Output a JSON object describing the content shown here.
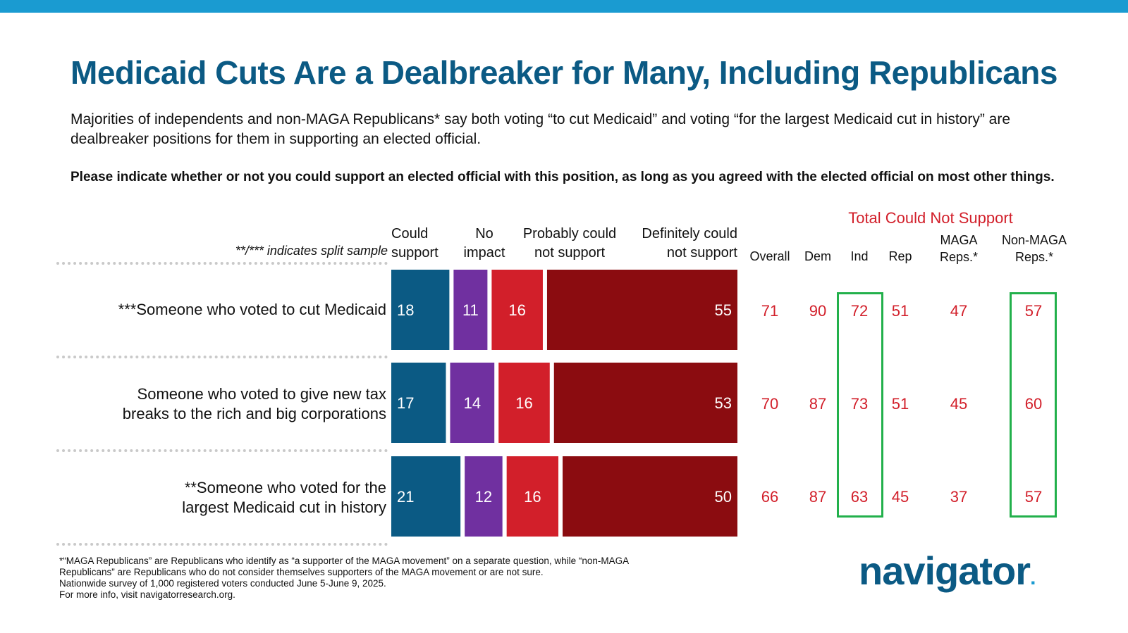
{
  "title": "Medicaid Cuts Are a Dealbreaker for Many, Including Republicans",
  "subtitle": "Majorities of independents and non-MAGA Republicans* say both voting “to cut Medicaid” and voting “for the largest Medicaid cut in history” are dealbreaker positions for them in supporting an elected official.",
  "question": "Please indicate whether or not you could support an elected official with this position, as long as you agreed with the elected official on most other things.",
  "split_note": "**/*** indicates split sample",
  "colors": {
    "brand": "#0b5a84",
    "topbar": "#1a9bd1",
    "could_support": "#0b5a84",
    "no_impact": "#7030a0",
    "probably_not": "#d21f2a",
    "definitely_not": "#8b0c10",
    "highlight": "#22b04b"
  },
  "chart_data": {
    "type": "bar",
    "orientation": "horizontal",
    "stacked": true,
    "categories": [
      "***Someone who voted to cut Medicaid",
      "Someone who voted to give new tax breaks to the rich and big corporations",
      "**Someone who voted for the largest Medicaid cut in history"
    ],
    "category_lines": [
      [
        "***Someone who voted to cut Medicaid"
      ],
      [
        "Someone who voted to give new tax",
        "breaks to the rich and big corporations"
      ],
      [
        "**Someone who voted for the",
        "largest Medicaid cut in history"
      ]
    ],
    "series": [
      {
        "name": "Could support",
        "name_lines": [
          "Could",
          "support"
        ],
        "color": "#0b5a84",
        "values": [
          18,
          17,
          21
        ]
      },
      {
        "name": "No impact",
        "name_lines": [
          "No",
          "impact"
        ],
        "color": "#7030a0",
        "values": [
          11,
          14,
          12
        ]
      },
      {
        "name": "Probably could not support",
        "name_lines": [
          "Probably could",
          "not support"
        ],
        "color": "#d21f2a",
        "values": [
          16,
          16,
          16
        ]
      },
      {
        "name": "Definitely could not support",
        "name_lines": [
          "Definitely could",
          "not support"
        ],
        "color": "#8b0c10",
        "values": [
          55,
          53,
          50
        ]
      }
    ],
    "side_table": {
      "group_title": "Total Could Not Support",
      "columns": [
        {
          "label_lines": [
            "Overall"
          ],
          "values": [
            71,
            70,
            66
          ],
          "highlighted": false
        },
        {
          "label_lines": [
            "Dem"
          ],
          "values": [
            90,
            87,
            87
          ],
          "highlighted": false
        },
        {
          "label_lines": [
            "Ind"
          ],
          "values": [
            72,
            73,
            63
          ],
          "highlighted": true
        },
        {
          "label_lines": [
            "Rep"
          ],
          "values": [
            51,
            51,
            45
          ],
          "highlighted": false
        },
        {
          "label_lines": [
            "MAGA",
            "Reps.*"
          ],
          "values": [
            47,
            45,
            37
          ],
          "highlighted": false
        },
        {
          "label_lines": [
            "Non-MAGA",
            "Reps.*"
          ],
          "values": [
            57,
            60,
            57
          ],
          "highlighted": true
        }
      ]
    }
  },
  "footnotes": [
    "*“MAGA Republicans” are Republicans who identify as “a supporter of the MAGA movement” on a separate question, while “non-MAGA",
    "Republicans” are Republicans who do not consider themselves supporters of the MAGA movement or are not sure.",
    "Nationwide survey of 1,000 registered voters conducted June 5-June 9, 2025.",
    "For more info, visit navigatorresearch.org."
  ],
  "logo": {
    "text": "navigator",
    "dot": "."
  }
}
